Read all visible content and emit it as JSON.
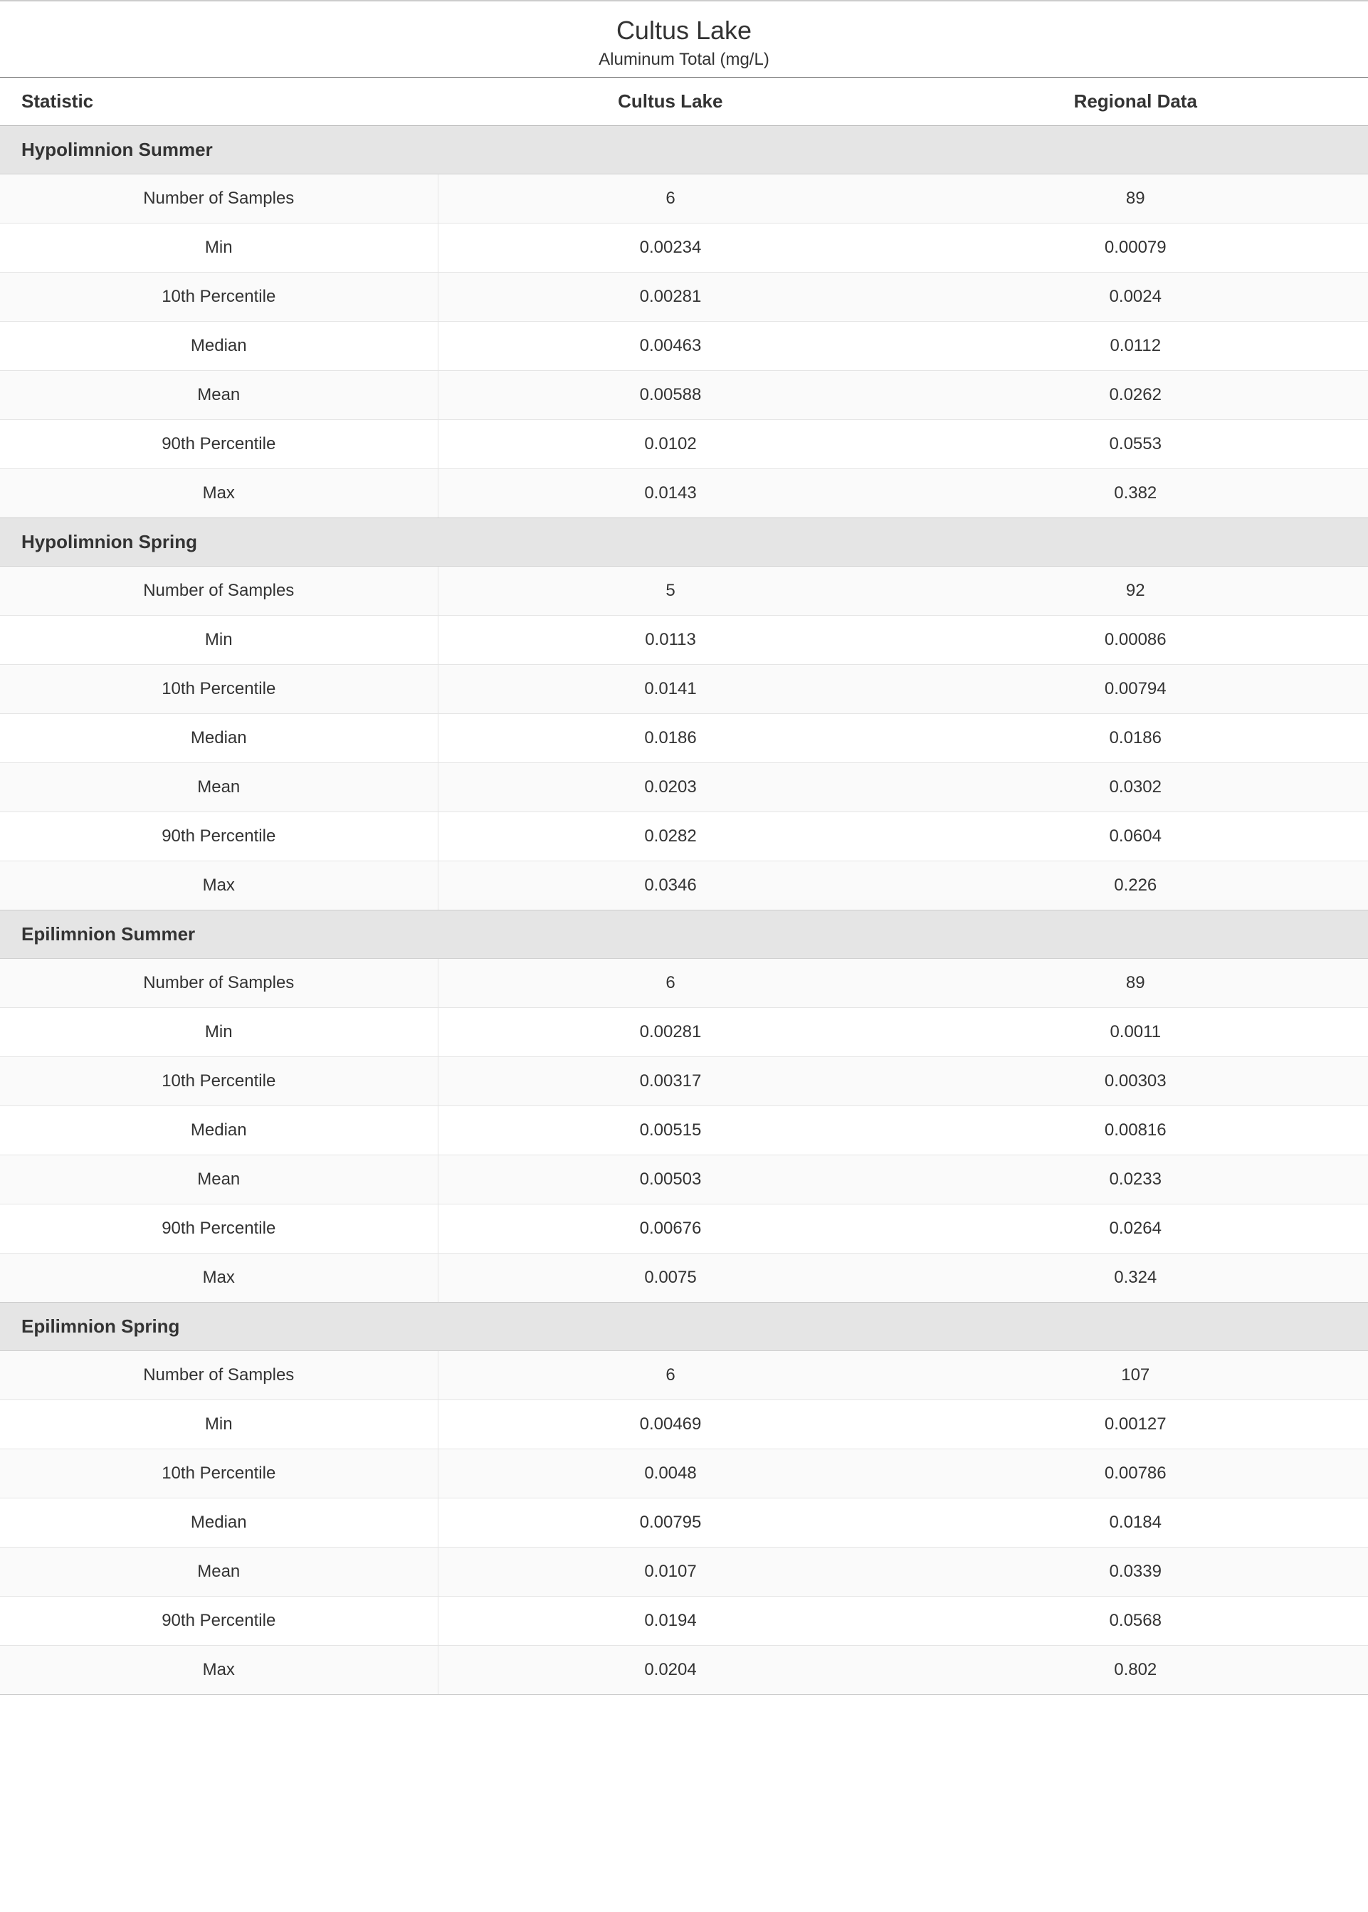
{
  "header": {
    "title": "Cultus Lake",
    "subtitle": "Aluminum Total (mg/L)"
  },
  "table": {
    "columns": [
      "Statistic",
      "Cultus Lake",
      "Regional Data"
    ],
    "col_widths_pct": [
      32,
      34,
      34
    ],
    "header_fontsize": 26,
    "header_fontweight": 700,
    "cell_fontsize": 24,
    "section_bg": "#e5e5e5",
    "row_border_color": "#e5e5e5",
    "alt_row_bg": "#fafafa",
    "text_color": "#333333",
    "sections": [
      {
        "label": "Hypolimnion Summer",
        "rows": [
          [
            "Number of Samples",
            "6",
            "89"
          ],
          [
            "Min",
            "0.00234",
            "0.00079"
          ],
          [
            "10th Percentile",
            "0.00281",
            "0.0024"
          ],
          [
            "Median",
            "0.00463",
            "0.0112"
          ],
          [
            "Mean",
            "0.00588",
            "0.0262"
          ],
          [
            "90th Percentile",
            "0.0102",
            "0.0553"
          ],
          [
            "Max",
            "0.0143",
            "0.382"
          ]
        ]
      },
      {
        "label": "Hypolimnion Spring",
        "rows": [
          [
            "Number of Samples",
            "5",
            "92"
          ],
          [
            "Min",
            "0.0113",
            "0.00086"
          ],
          [
            "10th Percentile",
            "0.0141",
            "0.00794"
          ],
          [
            "Median",
            "0.0186",
            "0.0186"
          ],
          [
            "Mean",
            "0.0203",
            "0.0302"
          ],
          [
            "90th Percentile",
            "0.0282",
            "0.0604"
          ],
          [
            "Max",
            "0.0346",
            "0.226"
          ]
        ]
      },
      {
        "label": "Epilimnion Summer",
        "rows": [
          [
            "Number of Samples",
            "6",
            "89"
          ],
          [
            "Min",
            "0.00281",
            "0.0011"
          ],
          [
            "10th Percentile",
            "0.00317",
            "0.00303"
          ],
          [
            "Median",
            "0.00515",
            "0.00816"
          ],
          [
            "Mean",
            "0.00503",
            "0.0233"
          ],
          [
            "90th Percentile",
            "0.00676",
            "0.0264"
          ],
          [
            "Max",
            "0.0075",
            "0.324"
          ]
        ]
      },
      {
        "label": "Epilimnion Spring",
        "rows": [
          [
            "Number of Samples",
            "6",
            "107"
          ],
          [
            "Min",
            "0.00469",
            "0.00127"
          ],
          [
            "10th Percentile",
            "0.0048",
            "0.00786"
          ],
          [
            "Median",
            "0.00795",
            "0.0184"
          ],
          [
            "Mean",
            "0.0107",
            "0.0339"
          ],
          [
            "90th Percentile",
            "0.0194",
            "0.0568"
          ],
          [
            "Max",
            "0.0204",
            "0.802"
          ]
        ]
      }
    ]
  }
}
